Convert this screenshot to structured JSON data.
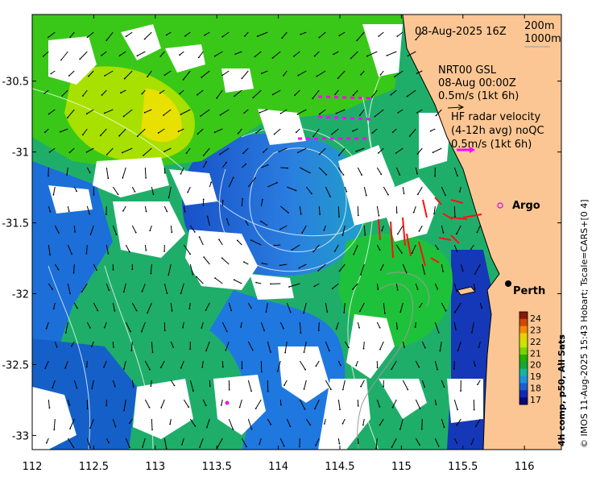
{
  "header": {
    "date": "08-Aug-2025 16Z",
    "depth_200": "200m",
    "depth_1000": "1000m"
  },
  "gsl_legend": {
    "line1": "NRT00 GSL",
    "line2": "08-Aug 00:00Z",
    "line3": "0.5m/s (1kt 6h)"
  },
  "hf_legend": {
    "line1": "HF radar velocity",
    "line2": "(4-12h avg) noQC",
    "line3": "0.5m/s (1kt 6h)"
  },
  "places": {
    "argo": "Argo",
    "perth": "Perth"
  },
  "axes": {
    "x_ticks": [
      "112",
      "112.5",
      "113",
      "113.5",
      "114",
      "114.5",
      "115",
      "115.5",
      "116"
    ],
    "y_ticks": [
      "-30.5",
      "-31",
      "-31.5",
      "-32",
      "-32.5",
      "-33"
    ],
    "lon_range": [
      112,
      116.3
    ],
    "lat_range": [
      -33.1,
      -30.03
    ]
  },
  "colorbar": {
    "label": "4h comp, p50, All Sats",
    "ticks": [
      "24",
      "23",
      "22",
      "21",
      "20",
      "19",
      "18",
      "17"
    ],
    "colors": [
      "#8b1a00",
      "#d14a00",
      "#f58a00",
      "#e6d200",
      "#c8e600",
      "#7ad400",
      "#1fb000",
      "#10a83c",
      "#12b5a0",
      "#1e8fe0",
      "#1a5fd0",
      "#1428b4",
      "#0a0a78"
    ]
  },
  "credit": "© IMOS 11-Aug-2025 15:43 Hobart; Tscale=CARS+[0 4]",
  "colors": {
    "land": "#fbc693",
    "argo_marker": "#e020e0",
    "hf_vector": "#ff1010",
    "gsl_vector": "#ff00ff"
  }
}
